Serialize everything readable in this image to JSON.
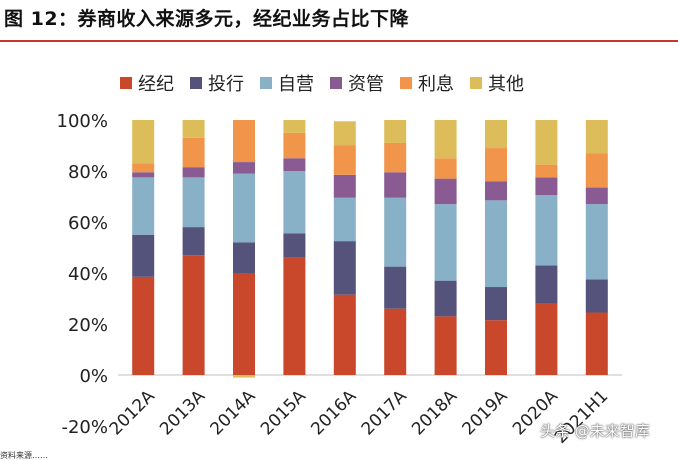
{
  "title": "图 12：券商收入来源多元，经纪业务占比下降",
  "chart_data": {
    "type": "bar",
    "stacked": true,
    "categories": [
      "2012A",
      "2013A",
      "2014A",
      "2015A",
      "2016A",
      "2017A",
      "2018A",
      "2019A",
      "2020A",
      "2021H1"
    ],
    "series": [
      {
        "name": "经纪",
        "color": "#c9472a",
        "values": [
          38.5,
          47,
          40,
          46,
          31.5,
          26,
          23,
          21.5,
          28,
          24.5
        ]
      },
      {
        "name": "投行",
        "color": "#55537b",
        "values": [
          16.5,
          11,
          12,
          9.5,
          21,
          16.5,
          14,
          13,
          15,
          13
        ]
      },
      {
        "name": "自营",
        "color": "#88b0c7",
        "values": [
          22.5,
          19.5,
          27,
          24.5,
          17,
          27,
          30,
          34,
          27.5,
          29.5
        ]
      },
      {
        "name": "资管",
        "color": "#8a5b93",
        "values": [
          2,
          4,
          4.5,
          5,
          9,
          10,
          10,
          7.5,
          7,
          6.5
        ]
      },
      {
        "name": "利息",
        "color": "#f0954a",
        "values": [
          3.5,
          11.5,
          16.5,
          10,
          11.5,
          11.5,
          8,
          13,
          5,
          13.5
        ]
      },
      {
        "name": "其他",
        "color": "#dcbd59",
        "values": [
          17,
          7,
          0,
          5,
          9.5,
          9,
          15,
          11,
          17.5,
          13
        ]
      }
    ],
    "negatives": {
      "2014A": {
        "series": "其他",
        "value": -1
      }
    },
    "ylim": [
      -20,
      100
    ],
    "yticks": [
      "-20%",
      "0%",
      "20%",
      "40%",
      "60%",
      "80%",
      "100%"
    ],
    "ytick_values": [
      -20,
      0,
      20,
      40,
      60,
      80,
      100
    ],
    "xlabel": "",
    "ylabel": "",
    "legend_position": "top"
  },
  "watermark": "头条 @未来智库",
  "footer_fragment": "资料来源……"
}
